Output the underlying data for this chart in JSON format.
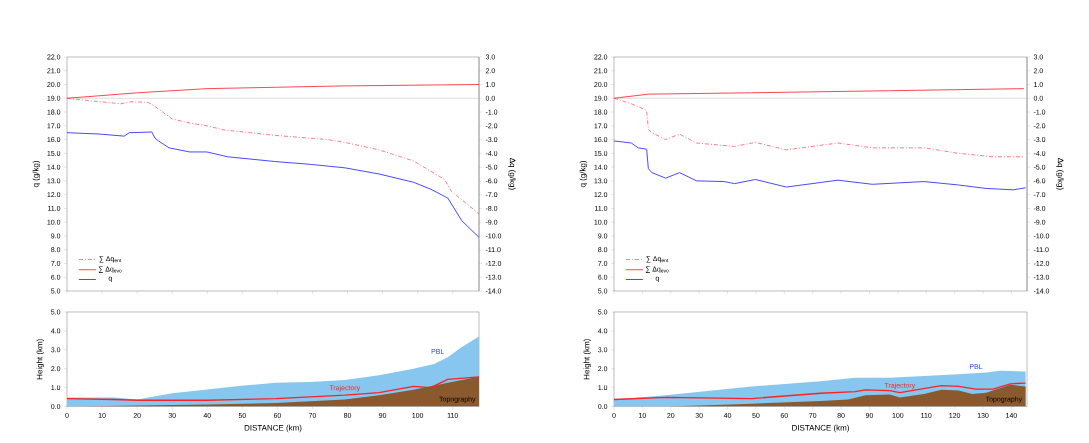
{
  "chart_data": [
    {
      "type": "line",
      "ylabel": "q (g/kg)",
      "y2label": "Δq (g/kg)",
      "xlim": [
        0,
        117.5
      ],
      "ylim": [
        5,
        22
      ],
      "y2lim": [
        -14,
        3
      ],
      "tick_labels": "y",
      "legend": "bottom left",
      "xticks": [
        0,
        10,
        20,
        30,
        40,
        50,
        60,
        70,
        80,
        90,
        100,
        110
      ],
      "yticks": [
        {
          "value": 5,
          "label": "5.0"
        },
        {
          "value": 6,
          "label": "6.0"
        },
        {
          "value": 7,
          "label": "7.0"
        },
        {
          "value": 8,
          "label": "8.0"
        },
        {
          "value": 9,
          "label": "9.0"
        },
        {
          "value": 10,
          "label": "10.0"
        },
        {
          "value": 11,
          "label": "11.0"
        },
        {
          "value": 12,
          "label": "12.0"
        },
        {
          "value": 13,
          "label": "13.0"
        },
        {
          "value": 14,
          "label": "14.0"
        },
        {
          "value": 15,
          "label": "15.0"
        },
        {
          "value": 16,
          "label": "16.0"
        },
        {
          "value": 17,
          "label": "17.0"
        },
        {
          "value": 18,
          "label": "18.0"
        },
        {
          "value": 19,
          "label": "19.0"
        },
        {
          "value": 20,
          "label": "20.0"
        },
        {
          "value": 21,
          "label": "21.0"
        },
        {
          "value": 22,
          "label": "22.0"
        }
      ],
      "y2ticks": [
        {
          "value": -14,
          "label": "-14.0"
        },
        {
          "value": -13,
          "label": "-13.0"
        },
        {
          "value": -12,
          "label": "-12.0"
        },
        {
          "value": -11,
          "label": "-11.0"
        },
        {
          "value": -10,
          "label": "-10.0"
        },
        {
          "value": -9,
          "label": "-9.0"
        },
        {
          "value": -8,
          "label": "-8.0"
        },
        {
          "value": -7,
          "label": "-7.0"
        },
        {
          "value": -6,
          "label": "-6.0"
        },
        {
          "value": -5,
          "label": "-5.0"
        },
        {
          "value": -4,
          "label": "-4.0"
        },
        {
          "value": -3,
          "label": "-3.0"
        },
        {
          "value": -2,
          "label": "-2.0"
        },
        {
          "value": -1,
          "label": "-1.0"
        },
        {
          "value": 0,
          "label": "0.0"
        },
        {
          "value": 1,
          "label": "1.0"
        },
        {
          "value": 2,
          "label": "2.0"
        },
        {
          "value": 3,
          "label": "3.0"
        }
      ],
      "ref_lines": [
        {
          "axis": "y2",
          "value": 0,
          "color": "#c8c8c8"
        }
      ],
      "series": [
        {
          "name": "∑ Δq$_{ent}$",
          "color": "#ff6a78",
          "axis": "y2",
          "line_style": "dashed",
          "x": [
            0,
            7.5,
            15.3,
            18.3,
            23.2,
            25.1,
            30,
            35,
            39.9,
            44.8,
            59.5,
            74.3,
            79.2,
            89,
            98.8,
            107.7,
            109.6,
            117.5
          ],
          "values": [
            0,
            -0.2,
            -0.4,
            -0.25,
            -0.3,
            -0.6,
            -1.5,
            -1.8,
            -2.0,
            -2.3,
            -2.7,
            -3.0,
            -3.2,
            -3.75,
            -4.55,
            -5.9,
            -6.75,
            -8.4
          ]
        },
        {
          "name": "∑ Δq$_{evo}$",
          "color": "#ff3040",
          "axis": "y2",
          "line_style": "solid",
          "x": [
            0,
            20.2,
            39.9,
            59.5,
            79.2,
            117.5
          ],
          "values": [
            0,
            0.4,
            0.7,
            0.8,
            0.9,
            1.0
          ]
        },
        {
          "name": "q",
          "color": "#3333ff",
          "line_style": "solid",
          "x": [
            0,
            9.4,
            16.3,
            17.8,
            24.2,
            25.1,
            26.1,
            29.1,
            35,
            39.9,
            45.8,
            59.5,
            69.4,
            79.2,
            89,
            93.9,
            98.8,
            103.7,
            108.6,
            112.6,
            117.5
          ],
          "values": [
            16.5,
            16.4,
            16.25,
            16.5,
            16.55,
            16.1,
            15.9,
            15.4,
            15.1,
            15.1,
            14.75,
            14.4,
            14.2,
            13.95,
            13.5,
            13.2,
            12.9,
            12.4,
            11.75,
            10.1,
            8.9
          ]
        }
      ]
    },
    {
      "type": "line",
      "ylabel": "q (g/kg)",
      "y2label": "Δq (g/kg)",
      "xlim": [
        0,
        145.5
      ],
      "ylim": [
        5,
        22
      ],
      "y2lim": [
        -14,
        3
      ],
      "tick_labels": "y",
      "legend": "bottom left",
      "xticks": [
        0,
        10,
        20,
        30,
        40,
        50,
        60,
        70,
        80,
        90,
        100,
        110,
        120,
        130,
        140
      ],
      "yticks": [
        {
          "value": 5,
          "label": "5.0"
        },
        {
          "value": 6,
          "label": "6.0"
        },
        {
          "value": 7,
          "label": "7.0"
        },
        {
          "value": 8,
          "label": "8.0"
        },
        {
          "value": 9,
          "label": "9.0"
        },
        {
          "value": 10,
          "label": "10.0"
        },
        {
          "value": 11,
          "label": "11.0"
        },
        {
          "value": 12,
          "label": "12.0"
        },
        {
          "value": 13,
          "label": "13.0"
        },
        {
          "value": 14,
          "label": "14.0"
        },
        {
          "value": 15,
          "label": "15.0"
        },
        {
          "value": 16,
          "label": "16.0"
        },
        {
          "value": 17,
          "label": "17.0"
        },
        {
          "value": 18,
          "label": "18.0"
        },
        {
          "value": 19,
          "label": "19.0"
        },
        {
          "value": 20,
          "label": "20.0"
        },
        {
          "value": 21,
          "label": "21.0"
        },
        {
          "value": 22,
          "label": "22.0"
        }
      ],
      "y2ticks": [
        {
          "value": -14,
          "label": "-14.0"
        },
        {
          "value": -13,
          "label": "-13.0"
        },
        {
          "value": -12,
          "label": "-12.0"
        },
        {
          "value": -11,
          "label": "-11.0"
        },
        {
          "value": -10,
          "label": "-10.0"
        },
        {
          "value": -9,
          "label": "-9.0"
        },
        {
          "value": -8,
          "label": "-8.0"
        },
        {
          "value": -7,
          "label": "-7.0"
        },
        {
          "value": -6,
          "label": "-6.0"
        },
        {
          "value": -5,
          "label": "-5.0"
        },
        {
          "value": -4,
          "label": "-4.0"
        },
        {
          "value": -3,
          "label": "-3.0"
        },
        {
          "value": -2,
          "label": "-2.0"
        },
        {
          "value": -1,
          "label": "-1.0"
        },
        {
          "value": 0,
          "label": "0.0"
        },
        {
          "value": 1,
          "label": "1.0"
        },
        {
          "value": 2,
          "label": "2.0"
        },
        {
          "value": 3,
          "label": "3.0"
        }
      ],
      "ref_lines": [
        {
          "axis": "y2",
          "value": 0,
          "color": "#c8c8c8"
        }
      ],
      "series": [
        {
          "name": "∑ Δq$_{ent}$",
          "color": "#ff6a78",
          "axis": "y2",
          "line_style": "dashed",
          "x": [
            0,
            6.1,
            8.5,
            11.5,
            12.1,
            13.3,
            18.2,
            23.1,
            29.1,
            42.5,
            49.8,
            60.7,
            78.9,
            91,
            109.2,
            121.4,
            133.5,
            144.4
          ],
          "values": [
            0,
            -0.4,
            -0.6,
            -0.9,
            -2.25,
            -2.5,
            -3.0,
            -2.6,
            -3.25,
            -3.5,
            -3.2,
            -3.75,
            -3.25,
            -3.6,
            -3.6,
            -4.0,
            -4.25,
            -4.25
          ]
        },
        {
          "name": "∑ Δq$_{evo}$",
          "color": "#ff3040",
          "axis": "y2",
          "line_style": "solid",
          "x": [
            0,
            12.1,
            48.5,
            97.1,
            144.4
          ],
          "values": [
            0,
            0.3,
            0.4,
            0.55,
            0.7
          ]
        },
        {
          "name": "q",
          "color": "#3333ff",
          "line_style": "solid",
          "x": [
            0,
            6.1,
            8.5,
            11.5,
            12.1,
            13.3,
            18.2,
            23.1,
            29.1,
            38.8,
            42.5,
            49.8,
            60.7,
            78.9,
            91,
            109.2,
            121.4,
            131.1,
            140.8,
            145
          ],
          "values": [
            15.9,
            15.75,
            15.4,
            15.3,
            13.9,
            13.6,
            13.2,
            13.6,
            13.0,
            12.95,
            12.8,
            13.1,
            12.55,
            13.05,
            12.75,
            12.95,
            12.7,
            12.45,
            12.35,
            12.5
          ]
        }
      ]
    },
    {
      "type": "area",
      "xlabel": "DISTANCE (km)",
      "ylabel": "Height (km)",
      "xlim": [
        0,
        117.5
      ],
      "ylim": [
        0,
        5
      ],
      "xticks": [
        0,
        10,
        20,
        30,
        40,
        50,
        60,
        70,
        80,
        90,
        100,
        110
      ],
      "yticks": [
        {
          "value": 0,
          "label": "0.0"
        },
        {
          "value": 1,
          "label": "1.0"
        },
        {
          "value": 2,
          "label": "2.0"
        },
        {
          "value": 3,
          "label": "3.0"
        },
        {
          "value": 4,
          "label": "4.0"
        },
        {
          "value": 5,
          "label": "5.0"
        }
      ],
      "series": [
        {
          "type": "area",
          "name": "PBL",
          "color": "#87c6ef",
          "x": [
            0,
            13.3,
            20.2,
            24,
            30,
            40,
            49.7,
            59.5,
            69.4,
            79.2,
            89,
            98.8,
            104.7,
            108.6,
            112.6,
            117.5
          ],
          "values": [
            0.48,
            0.48,
            0.37,
            0.5,
            0.7,
            0.9,
            1.1,
            1.25,
            1.3,
            1.4,
            1.65,
            2.0,
            2.25,
            2.6,
            3.15,
            3.7
          ]
        },
        {
          "type": "area",
          "name": "Topography",
          "color": "#8a5a2e",
          "x": [
            0,
            3,
            20.2,
            40,
            59.5,
            79.2,
            89,
            98.8,
            108.6,
            117.5
          ],
          "values": [
            0,
            0,
            0.05,
            0.1,
            0.18,
            0.37,
            0.6,
            0.88,
            1.25,
            1.57
          ]
        },
        {
          "type": "line",
          "name": "Trajectory",
          "color": "#ff2020",
          "x": [
            0,
            13.3,
            20.2,
            40,
            59.5,
            79.2,
            89,
            98.8,
            103.7,
            108.6,
            117.5
          ],
          "values": [
            0.42,
            0.37,
            0.33,
            0.33,
            0.42,
            0.6,
            0.73,
            1.06,
            1.0,
            1.43,
            1.57
          ]
        }
      ]
    },
    {
      "type": "area",
      "xlabel": "DISTANCE (km)",
      "ylabel": "Height (km)",
      "xlim": [
        0,
        145.5
      ],
      "ylim": [
        0,
        5
      ],
      "xticks": [
        0,
        10,
        20,
        30,
        40,
        50,
        60,
        70,
        80,
        90,
        100,
        110,
        120,
        130,
        140
      ],
      "yticks": [
        {
          "value": 0,
          "label": "0.0"
        },
        {
          "value": 1,
          "label": "1.0"
        },
        {
          "value": 2,
          "label": "2.0"
        },
        {
          "value": 3,
          "label": "3.0"
        },
        {
          "value": 4,
          "label": "4.0"
        },
        {
          "value": 5,
          "label": "5.0"
        }
      ],
      "series": [
        {
          "type": "area",
          "name": "PBL",
          "color": "#87c6ef",
          "x": [
            0,
            18.2,
            48.5,
            72.8,
            85,
            97.1,
            109.2,
            121.4,
            131.1,
            136,
            145
          ],
          "values": [
            0.37,
            0.6,
            1.06,
            1.34,
            1.52,
            1.52,
            1.61,
            1.7,
            1.8,
            1.89,
            1.85
          ]
        },
        {
          "type": "area",
          "name": "Topography",
          "color": "#8a5a2e",
          "x": [
            0,
            18.2,
            30.3,
            48.5,
            72.8,
            82.5,
            88.6,
            97.1,
            100.7,
            109.2,
            115.3,
            121.4,
            126.2,
            131.1,
            139.6,
            145
          ],
          "values": [
            0,
            0,
            0.05,
            0.15,
            0.29,
            0.37,
            0.6,
            0.64,
            0.48,
            0.66,
            0.88,
            0.84,
            0.66,
            0.73,
            1.15,
            1.06
          ]
        },
        {
          "type": "line",
          "name": "Trajectory",
          "color": "#ff2020",
          "x": [
            0,
            18.2,
            48.5,
            72.8,
            85,
            88.6,
            97.1,
            100.7,
            115.3,
            121.4,
            127.4,
            133.5,
            139.6,
            145
          ],
          "values": [
            0.37,
            0.48,
            0.42,
            0.7,
            0.79,
            0.88,
            0.84,
            0.73,
            1.1,
            1.06,
            0.92,
            0.92,
            1.2,
            1.24
          ]
        }
      ]
    }
  ]
}
